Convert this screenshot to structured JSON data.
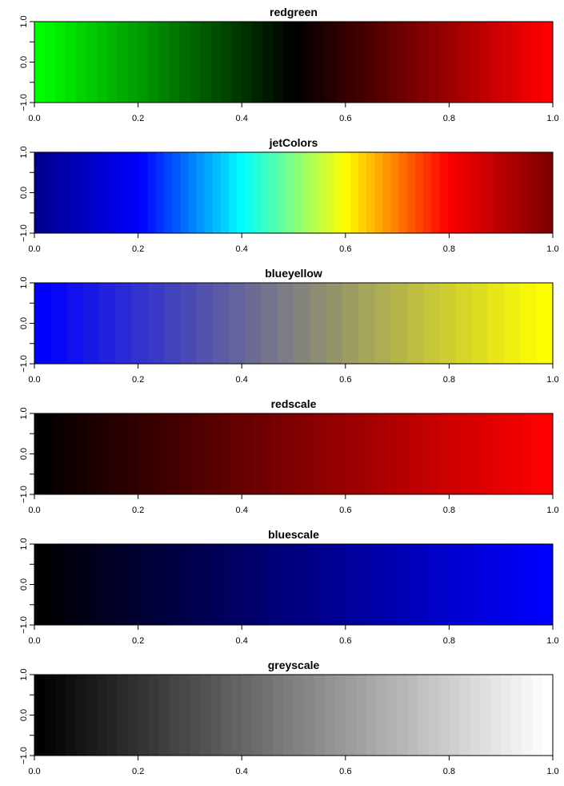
{
  "chart_data": [
    {
      "type": "heatmap",
      "title": "redgreen",
      "palette": "redgreen",
      "n_colors": 50,
      "xlim": [
        0,
        1
      ],
      "ylim": [
        -1,
        1
      ],
      "x_ticks": [
        0.0,
        0.2,
        0.4,
        0.6,
        0.8,
        1.0
      ],
      "x_tick_labels": [
        "0.0",
        "0.2",
        "0.4",
        "0.6",
        "0.8",
        "1.0"
      ],
      "y_ticks": [
        -1.0,
        -0.5,
        0.0,
        0.5,
        1.0
      ],
      "y_tick_labels": [
        "−1.0",
        "",
        "0.0",
        "",
        "1.0"
      ],
      "color_stops": [
        "#00ff00",
        "#000000",
        "#ff0000"
      ]
    },
    {
      "type": "heatmap",
      "title": "jetColors",
      "palette": "jet",
      "n_colors": 64,
      "xlim": [
        0,
        1
      ],
      "ylim": [
        -1,
        1
      ],
      "x_ticks": [
        0.0,
        0.2,
        0.4,
        0.6,
        0.8,
        1.0
      ],
      "x_tick_labels": [
        "0.0",
        "0.2",
        "0.4",
        "0.6",
        "0.8",
        "1.0"
      ],
      "y_ticks": [
        -1.0,
        -0.5,
        0.0,
        0.5,
        1.0
      ],
      "y_tick_labels": [
        "−1.0",
        "",
        "0.0",
        "",
        "1.0"
      ],
      "color_stops": [
        "#00008f",
        "#0000ff",
        "#00ffff",
        "#ffff00",
        "#ff0000",
        "#800000"
      ]
    },
    {
      "type": "heatmap",
      "title": "blueyellow",
      "palette": "blueyellow",
      "n_colors": 32,
      "xlim": [
        0,
        1
      ],
      "ylim": [
        -1,
        1
      ],
      "x_ticks": [
        0.0,
        0.2,
        0.4,
        0.6,
        0.8,
        1.0
      ],
      "x_tick_labels": [
        "0.0",
        "0.2",
        "0.4",
        "0.6",
        "0.8",
        "1.0"
      ],
      "y_ticks": [
        -1.0,
        -0.5,
        0.0,
        0.5,
        1.0
      ],
      "y_tick_labels": [
        "−1.0",
        "",
        "0.0",
        "",
        "1.0"
      ],
      "color_stops": [
        "#0000ff",
        "#808080",
        "#ffff00"
      ]
    },
    {
      "type": "heatmap",
      "title": "redscale",
      "palette": "redscale",
      "n_colors": 50,
      "xlim": [
        0,
        1
      ],
      "ylim": [
        -1,
        1
      ],
      "x_ticks": [
        0.0,
        0.2,
        0.4,
        0.6,
        0.8,
        1.0
      ],
      "x_tick_labels": [
        "0.0",
        "0.2",
        "0.4",
        "0.6",
        "0.8",
        "1.0"
      ],
      "y_ticks": [
        -1.0,
        -0.5,
        0.0,
        0.5,
        1.0
      ],
      "y_tick_labels": [
        "−1.0",
        "",
        "0.0",
        "",
        "1.0"
      ],
      "color_stops": [
        "#000000",
        "#ff0000"
      ]
    },
    {
      "type": "heatmap",
      "title": "bluescale",
      "palette": "bluescale",
      "n_colors": 50,
      "xlim": [
        0,
        1
      ],
      "ylim": [
        -1,
        1
      ],
      "x_ticks": [
        0.0,
        0.2,
        0.4,
        0.6,
        0.8,
        1.0
      ],
      "x_tick_labels": [
        "0.0",
        "0.2",
        "0.4",
        "0.6",
        "0.8",
        "1.0"
      ],
      "y_ticks": [
        -1.0,
        -0.5,
        0.0,
        0.5,
        1.0
      ],
      "y_tick_labels": [
        "−1.0",
        "",
        "0.0",
        "",
        "1.0"
      ],
      "color_stops": [
        "#000000",
        "#0000ff"
      ]
    },
    {
      "type": "heatmap",
      "title": "greyscale",
      "palette": "greyscale",
      "n_colors": 50,
      "xlim": [
        0,
        1
      ],
      "ylim": [
        -1,
        1
      ],
      "x_ticks": [
        0.0,
        0.2,
        0.4,
        0.6,
        0.8,
        1.0
      ],
      "x_tick_labels": [
        "0.0",
        "0.2",
        "0.4",
        "0.6",
        "0.8",
        "1.0"
      ],
      "y_ticks": [
        -1.0,
        -0.5,
        0.0,
        0.5,
        1.0
      ],
      "y_tick_labels": [
        "−1.0",
        "",
        "0.0",
        "",
        "1.0"
      ],
      "color_stops": [
        "#000000",
        "#ffffff"
      ]
    }
  ]
}
